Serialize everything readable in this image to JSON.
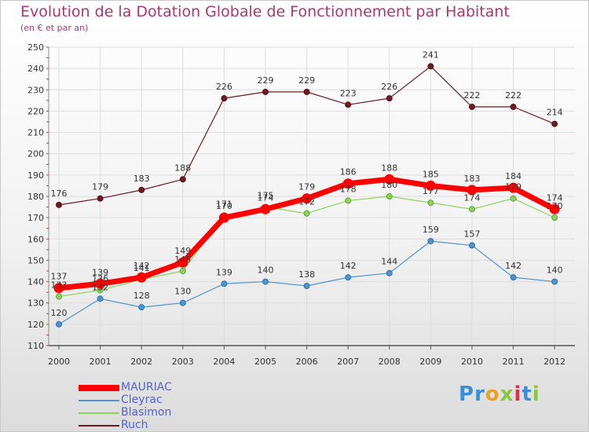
{
  "header": {
    "title": "Evolution de la Dotation Globale de Fonctionnement par Habitant",
    "subtitle": "(en € et par an)"
  },
  "logo": {
    "text": "Proxiti",
    "letters": [
      "P",
      "r",
      "o",
      "x",
      "i",
      "t",
      "i"
    ],
    "colors": [
      "#3b8fd6",
      "#3b8fd6",
      "#f0a020",
      "#8bc640",
      "#e0304a",
      "#3b8fd6",
      "#8bc640"
    ]
  },
  "chart_data": {
    "type": "line",
    "title": "Evolution de la Dotation Globale de Fonctionnement par Habitant",
    "subtitle": "(en € et par an)",
    "xlabel": "",
    "ylabel": "",
    "categories": [
      "2000",
      "2001",
      "2002",
      "2003",
      "2004",
      "2005",
      "2006",
      "2007",
      "2008",
      "2009",
      "2010",
      "2011",
      "2012"
    ],
    "ylim": [
      110,
      250
    ],
    "yticks": [
      110,
      120,
      130,
      140,
      150,
      160,
      170,
      180,
      190,
      200,
      210,
      220,
      230,
      240,
      250
    ],
    "grid": true,
    "legend_position": "bottom-left",
    "series": [
      {
        "name": "Ruch",
        "color": "#6e1a22",
        "values": [
          176,
          179,
          183,
          188,
          226,
          229,
          229,
          223,
          226,
          241,
          222,
          222,
          214
        ]
      },
      {
        "name": "Cleyrac",
        "color": "#4d94d0",
        "values": [
          120,
          132,
          128,
          130,
          139,
          140,
          138,
          142,
          144,
          159,
          157,
          142,
          140
        ]
      },
      {
        "name": "Blasimon",
        "color": "#8cd35a",
        "values": [
          133,
          136,
          141,
          145,
          171,
          175,
          172,
          178,
          180,
          177,
          174,
          179,
          170
        ]
      },
      {
        "name": "MAURIAC",
        "color": "#ff0000",
        "values": [
          137,
          139,
          142,
          149,
          170,
          174,
          179,
          186,
          188,
          185,
          183,
          184,
          174
        ]
      }
    ]
  }
}
